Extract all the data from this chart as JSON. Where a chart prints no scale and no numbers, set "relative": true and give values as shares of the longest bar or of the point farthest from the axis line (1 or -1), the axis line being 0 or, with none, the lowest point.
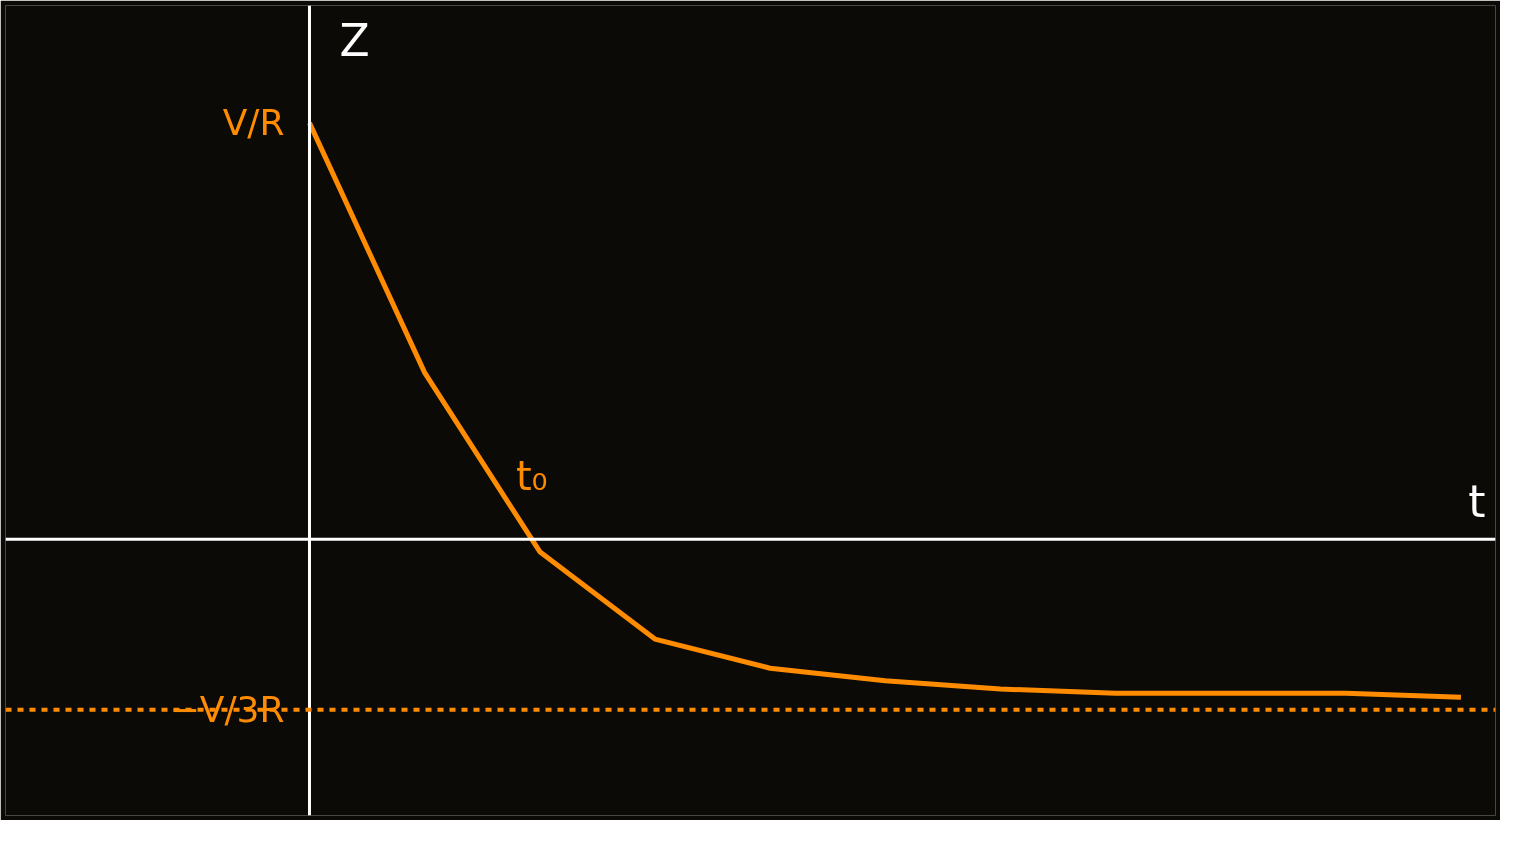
{
  "chart_data": {
    "type": "line",
    "relative": true,
    "xlabel": "t",
    "ylabel": "Z",
    "categories": [
      null,
      null,
      null,
      null,
      null,
      null,
      null,
      null,
      null,
      null,
      null
    ],
    "series": [
      {
        "color": "#ff8c00",
        "values": [
          1,
          0.4,
          -0.03,
          -0.24,
          -0.31,
          -0.34,
          -0.36,
          -0.37,
          -0.37,
          -0.37,
          -0.38
        ]
      }
    ],
    "annotations": [
      "V/R",
      "−V/3R",
      "t₀"
    ],
    "ref_lines": [
      {
        "axis": "y",
        "value": -0.41,
        "label": null,
        "color": "#ff8c00",
        "line_style": "dashed"
      }
    ],
    "grid": false,
    "marker": "none",
    "line_style": "solid"
  }
}
